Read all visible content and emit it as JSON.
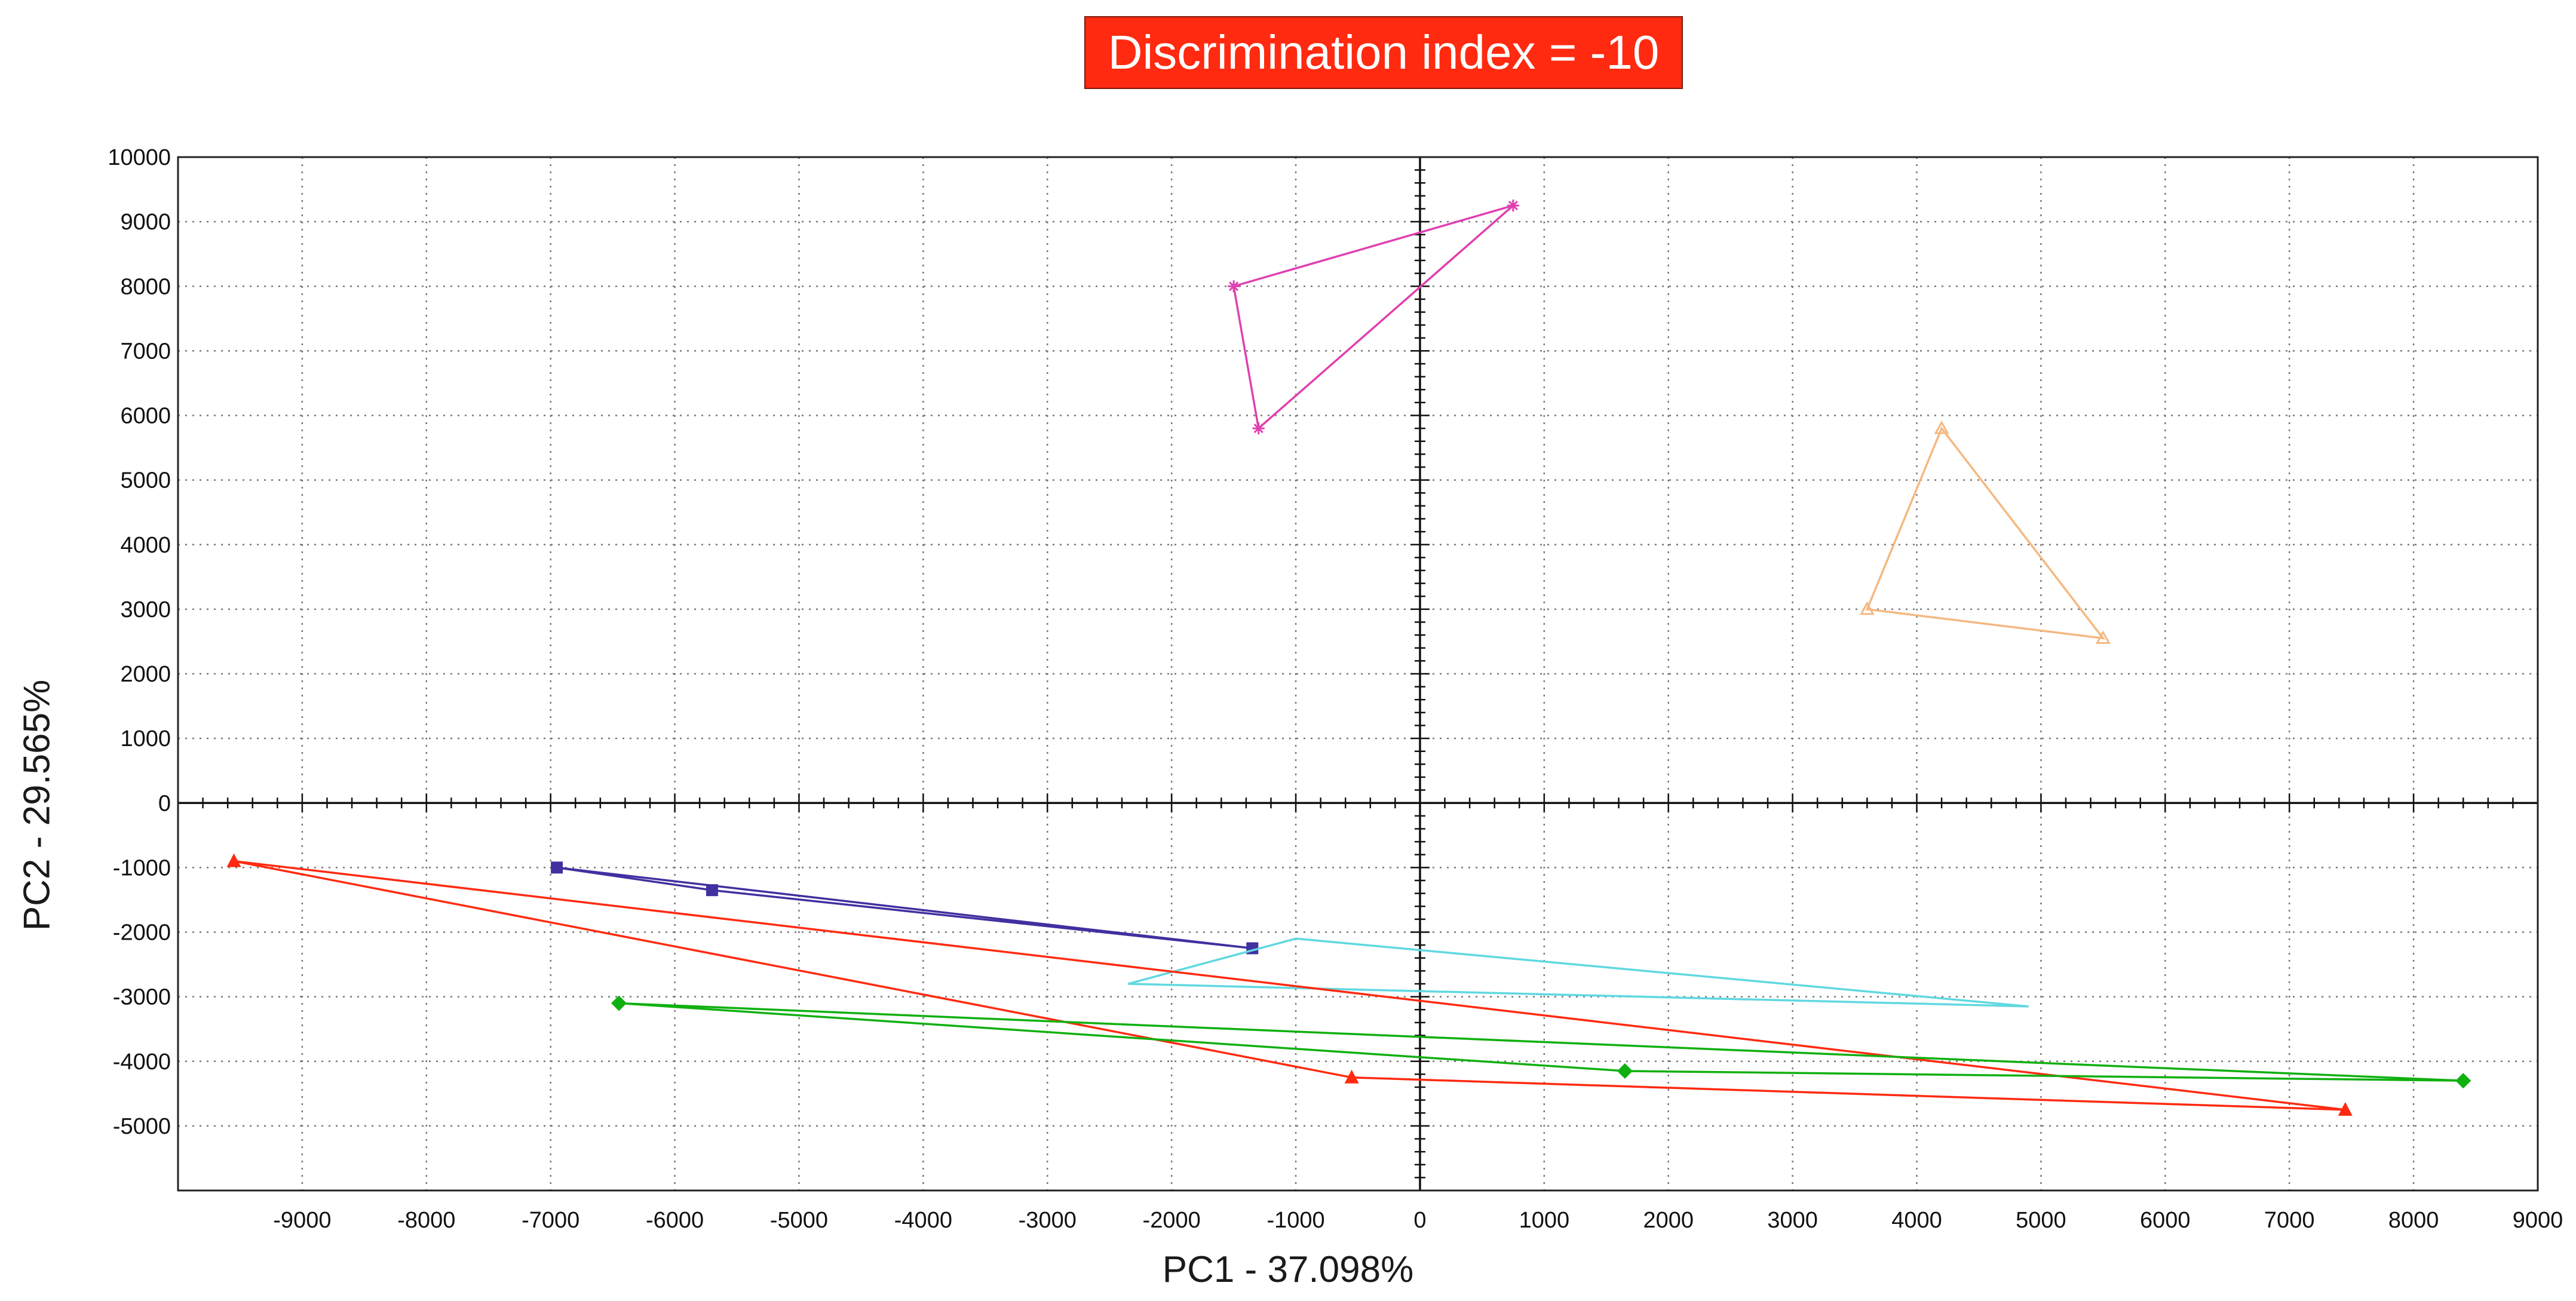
{
  "banner": {
    "text": "Discrimination index = -10",
    "bg": "#ff2a10"
  },
  "chart_data": {
    "type": "line",
    "title": "Discrimination index = -10",
    "xlabel": "PC1 - 37.098%",
    "ylabel": "PC2 - 29.565%",
    "xlim": [
      -10000,
      9000
    ],
    "ylim": [
      -6000,
      10000
    ],
    "xticks": [
      -9000,
      -8000,
      -7000,
      -6000,
      -5000,
      -4000,
      -3000,
      -2000,
      -1000,
      0,
      1000,
      2000,
      3000,
      4000,
      5000,
      6000,
      7000,
      8000,
      9000
    ],
    "yticks": [
      -5000,
      -4000,
      -3000,
      -2000,
      -1000,
      0,
      1000,
      2000,
      3000,
      4000,
      5000,
      6000,
      7000,
      8000,
      9000,
      10000
    ],
    "grid": true,
    "series": [
      {
        "color": "#e040b0",
        "marker": "star",
        "points": [
          [
            -1500,
            8000
          ],
          [
            750,
            9250
          ],
          [
            -1300,
            5800
          ]
        ]
      },
      {
        "color": "#f5b880",
        "marker": "triangle-open",
        "points": [
          [
            4200,
            5800
          ],
          [
            3600,
            3000
          ],
          [
            5500,
            2550
          ]
        ]
      },
      {
        "color": "#4030a0",
        "marker": "square",
        "points": [
          [
            -6950,
            -1000
          ],
          [
            -5700,
            -1350
          ],
          [
            -1350,
            -2250
          ]
        ]
      },
      {
        "color": "#60d8e0",
        "marker": "none",
        "points": [
          [
            -1000,
            -2100
          ],
          [
            -2350,
            -2800
          ],
          [
            4900,
            -3150
          ]
        ]
      },
      {
        "color": "#ff2a10",
        "marker": "triangle",
        "points": [
          [
            -9550,
            -900
          ],
          [
            7450,
            -4750
          ],
          [
            -550,
            -4250
          ]
        ]
      },
      {
        "color": "#10b010",
        "marker": "diamond",
        "points": [
          [
            -6450,
            -3100
          ],
          [
            8400,
            -4300
          ],
          [
            1650,
            -4150
          ]
        ]
      }
    ]
  }
}
